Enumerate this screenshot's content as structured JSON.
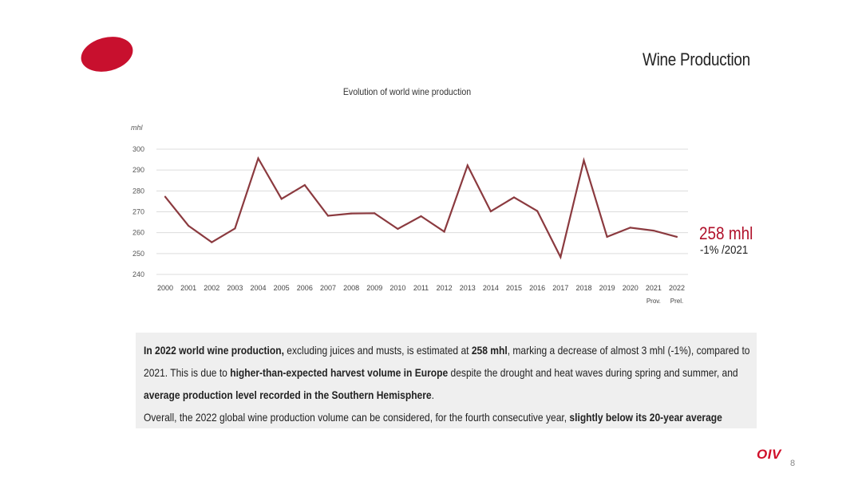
{
  "slide": {
    "title": "Wine Production",
    "page_number": "8",
    "footer_logo": "OIV",
    "accent_color": "#b0102a",
    "logo_color": "#c8102e"
  },
  "callout": {
    "value": "258 mhl",
    "change": "-1% /2021"
  },
  "text": {
    "lines": [
      [
        {
          "t": "In 2022 world wine production,",
          "b": true
        },
        {
          "t": " excluding juices and musts, is estimated at ",
          "b": false
        },
        {
          "t": "258 mhl",
          "b": true
        },
        {
          "t": ", marking a decrease of almost 3 mhl (-1%), compared to",
          "b": false
        }
      ],
      [
        {
          "t": "2021. This is due to ",
          "b": false
        },
        {
          "t": "higher-than-expected harvest volume in Europe",
          "b": true
        },
        {
          "t": " despite the drought and heat waves during spring and summer, and",
          "b": false
        }
      ],
      [
        {
          "t": "average production level recorded in the Southern Hemisphere",
          "b": true
        },
        {
          "t": ".",
          "b": false
        }
      ],
      [
        {
          "t": "Overall, the 2022 global wine production volume can be considered, for the fourth consecutive year, ",
          "b": false
        },
        {
          "t": "slightly below its 20-year average",
          "b": true
        }
      ]
    ]
  },
  "chart_data": {
    "type": "line",
    "title": "Evolution of world wine production",
    "ylabel": "mhl",
    "ylim": [
      240,
      300
    ],
    "yticks": [
      240,
      250,
      260,
      270,
      280,
      290,
      300
    ],
    "grid": true,
    "categories": [
      "2000",
      "2001",
      "2002",
      "2003",
      "2004",
      "2005",
      "2006",
      "2007",
      "2008",
      "2009",
      "2010",
      "2011",
      "2012",
      "2013",
      "2014",
      "2015",
      "2016",
      "2017",
      "2018",
      "2019",
      "2020",
      "2021",
      "2022"
    ],
    "category_sublabels": [
      "",
      "",
      "",
      "",
      "",
      "",
      "",
      "",
      "",
      "",
      "",
      "",
      "",
      "",
      "",
      "",
      "",
      "",
      "",
      "",
      "",
      "Prov.",
      "Prel."
    ],
    "series": [
      {
        "color": "#8b3a3f",
        "values": [
          277.2,
          263.3,
          255.4,
          262.0,
          295.6,
          276.2,
          282.8,
          268.1,
          269.2,
          269.3,
          261.8,
          267.9,
          260.5,
          292.2,
          270.2,
          276.9,
          270.4,
          248.3,
          294.6,
          258.0,
          262.4,
          261.0,
          258.0
        ]
      }
    ]
  }
}
